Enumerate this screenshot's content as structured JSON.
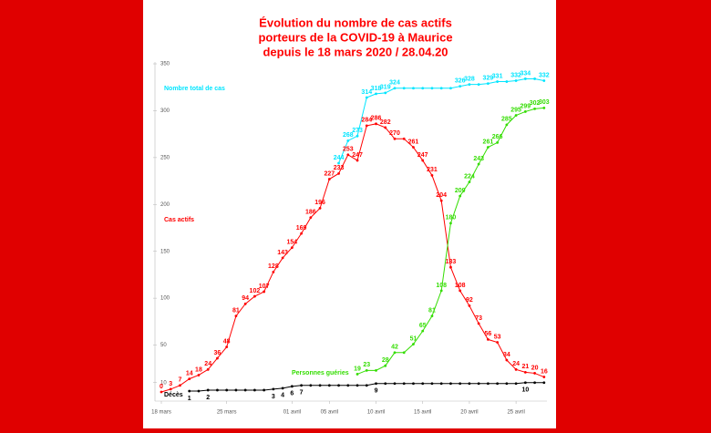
{
  "chart_data": {
    "type": "line",
    "title_lines": [
      "Évolution du nombre de cas actifs",
      "porteurs de la COVID-19 à Maurice",
      "depuis le 18 mars 2020  /  28.04.20"
    ],
    "categories": [
      "18 mars",
      null,
      null,
      null,
      null,
      null,
      null,
      "25 mars",
      null,
      null,
      null,
      null,
      null,
      null,
      "01 avril",
      null,
      null,
      null,
      "05 avril",
      null,
      null,
      null,
      null,
      "10 avril",
      null,
      null,
      null,
      null,
      "15 avril",
      null,
      null,
      null,
      null,
      "20 avril",
      null,
      null,
      null,
      null,
      "25 avril",
      null,
      null,
      null
    ],
    "ylim": [
      0,
      350
    ],
    "yticks": [
      10,
      50,
      100,
      150,
      200,
      250,
      300,
      350
    ],
    "grid": false,
    "series": [
      {
        "name": "Nombre total de cas",
        "color": "#00e5ff",
        "values": [
          null,
          null,
          null,
          null,
          null,
          null,
          null,
          null,
          null,
          null,
          null,
          null,
          null,
          null,
          null,
          null,
          null,
          null,
          null,
          244,
          268,
          273,
          314,
          318,
          319,
          324,
          324,
          324,
          324,
          324,
          324,
          324,
          326,
          328,
          328,
          329,
          331,
          331,
          332,
          334,
          334,
          332
        ]
      },
      {
        "name": "Cas actifs",
        "color": "#ff0000",
        "values": [
          0,
          3,
          7,
          14,
          18,
          24,
          36,
          48,
          81,
          94,
          102,
          107,
          128,
          143,
          154,
          169,
          186,
          196,
          227,
          233,
          253,
          247,
          284,
          286,
          282,
          270,
          270,
          261,
          247,
          231,
          204,
          133,
          108,
          92,
          73,
          56,
          53,
          34,
          24,
          21,
          20,
          16
        ]
      },
      {
        "name": "Personnes guéries",
        "color": "#33dd00",
        "values": [
          null,
          null,
          null,
          null,
          null,
          null,
          null,
          null,
          null,
          null,
          null,
          null,
          null,
          null,
          null,
          null,
          null,
          null,
          null,
          null,
          null,
          19,
          23,
          23,
          28,
          42,
          42,
          51,
          65,
          81,
          108,
          180,
          209,
          224,
          243,
          261,
          266,
          285,
          295,
          299,
          302,
          303
        ]
      },
      {
        "name": "Décès",
        "color": "#000000",
        "values": [
          null,
          null,
          null,
          1,
          1,
          2,
          2,
          2,
          2,
          2,
          2,
          2,
          3,
          4,
          6,
          7,
          7,
          7,
          7,
          7,
          7,
          7,
          7,
          9,
          9,
          9,
          9,
          9,
          9,
          9,
          9,
          9,
          9,
          9,
          9,
          9,
          9,
          9,
          9,
          10,
          10,
          10
        ]
      }
    ]
  }
}
